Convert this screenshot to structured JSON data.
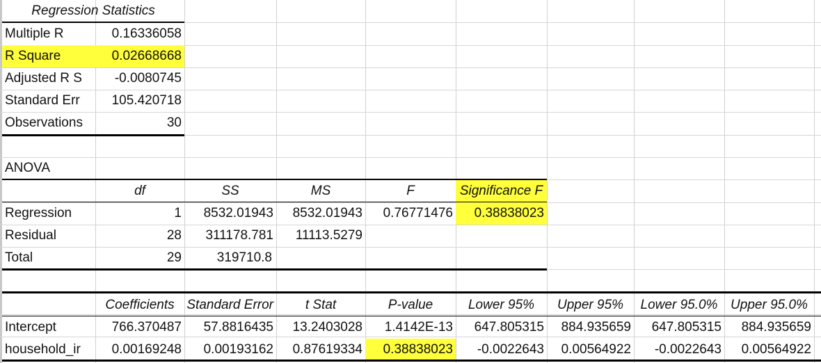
{
  "regression_statistics": {
    "title": "Regression Statistics",
    "rows": [
      {
        "label": "Multiple R",
        "value": "0.16336058"
      },
      {
        "label": "R Square",
        "value": "0.02668668"
      },
      {
        "label": "Adjusted R S",
        "value": "-0.0080745"
      },
      {
        "label": "Standard Err",
        "value": "105.420718"
      },
      {
        "label": "Observations",
        "value": "30"
      }
    ]
  },
  "anova": {
    "title": "ANOVA",
    "headers": [
      "df",
      "SS",
      "MS",
      "F",
      "Significance F"
    ],
    "rows": [
      {
        "label": "Regression",
        "df": "1",
        "ss": "8532.01943",
        "ms": "8532.01943",
        "f": "0.76771476",
        "sig_f": "0.38838023"
      },
      {
        "label": "Residual",
        "df": "28",
        "ss": "311178.781",
        "ms": "11113.5279"
      },
      {
        "label": "Total",
        "df": "29",
        "ss": "319710.8"
      }
    ]
  },
  "coefficients": {
    "headers": [
      "Coefficients",
      "Standard Error",
      "t Stat",
      "P-value",
      "Lower 95%",
      "Upper 95%",
      "Lower 95.0%",
      "Upper 95.0%"
    ],
    "rows": [
      {
        "label": "Intercept",
        "values": [
          "766.370487",
          "57.8816435",
          "13.2403028",
          "1.4142E-13",
          "647.805315",
          "884.935659",
          "647.805315",
          "884.935659"
        ]
      },
      {
        "label": "household_ir",
        "values": [
          "0.00169248",
          "0.00193162",
          "0.87619334",
          "0.38838023",
          "-0.0022643",
          "0.00564922",
          "-0.0022643",
          "0.00564922"
        ]
      }
    ]
  },
  "highlight_color": "#ffff3b"
}
